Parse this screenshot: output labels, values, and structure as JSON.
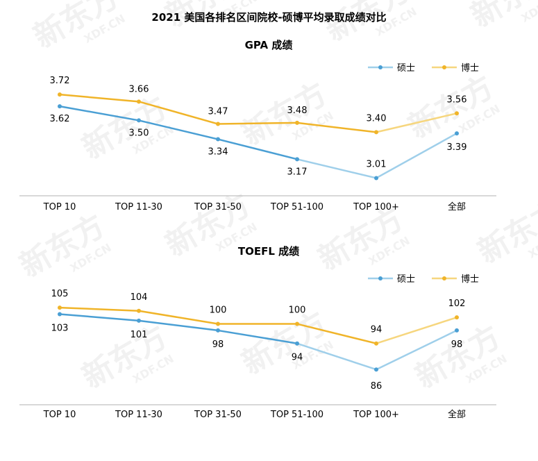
{
  "title": "2021 美国各排名区间院校-硕博平均录取成绩对比",
  "watermark": {
    "brand": "新东方",
    "domain": "XDF.CN"
  },
  "colors": {
    "master": "#4a9fd4",
    "master_light": "#9fcfea",
    "phd": "#f0b429",
    "phd_light": "#f6d67e",
    "axis": "#b0b0b0"
  },
  "chart_data": [
    {
      "type": "line",
      "title": "GPA 成绩",
      "categories": [
        "TOP 10",
        "TOP 11-30",
        "TOP 31-50",
        "TOP 51-100",
        "TOP 100+",
        "全部"
      ],
      "series": [
        {
          "name": "硕士",
          "values": [
            3.62,
            3.5,
            3.34,
            3.17,
            3.01,
            3.39
          ],
          "labels": [
            "3.62",
            "3.50",
            "3.34",
            "3.17",
            "3.01",
            "3.39"
          ]
        },
        {
          "name": "博士",
          "values": [
            3.72,
            3.66,
            3.47,
            3.48,
            3.4,
            3.56
          ],
          "labels": [
            "3.72",
            "3.66",
            "3.47",
            "3.48",
            "3.40",
            "3.56"
          ]
        }
      ],
      "legend_position": "top-right",
      "ylim": [
        2.93,
        3.78
      ],
      "grid": false
    },
    {
      "type": "line",
      "title": "TOEFL 成绩",
      "categories": [
        "TOP 10",
        "TOP 11-30",
        "TOP 31-50",
        "TOP 51-100",
        "TOP 100+",
        "全部"
      ],
      "series": [
        {
          "name": "硕士",
          "values": [
            103,
            101,
            98,
            94,
            86,
            98
          ],
          "labels": [
            "103",
            "101",
            "98",
            "94",
            "86",
            "98"
          ]
        },
        {
          "name": "博士",
          "values": [
            105,
            104,
            100,
            100,
            94,
            102
          ],
          "labels": [
            "105",
            "104",
            "100",
            "100",
            "94",
            "102"
          ]
        }
      ],
      "legend_position": "top-right",
      "ylim": [
        82,
        108
      ],
      "grid": false
    }
  ]
}
